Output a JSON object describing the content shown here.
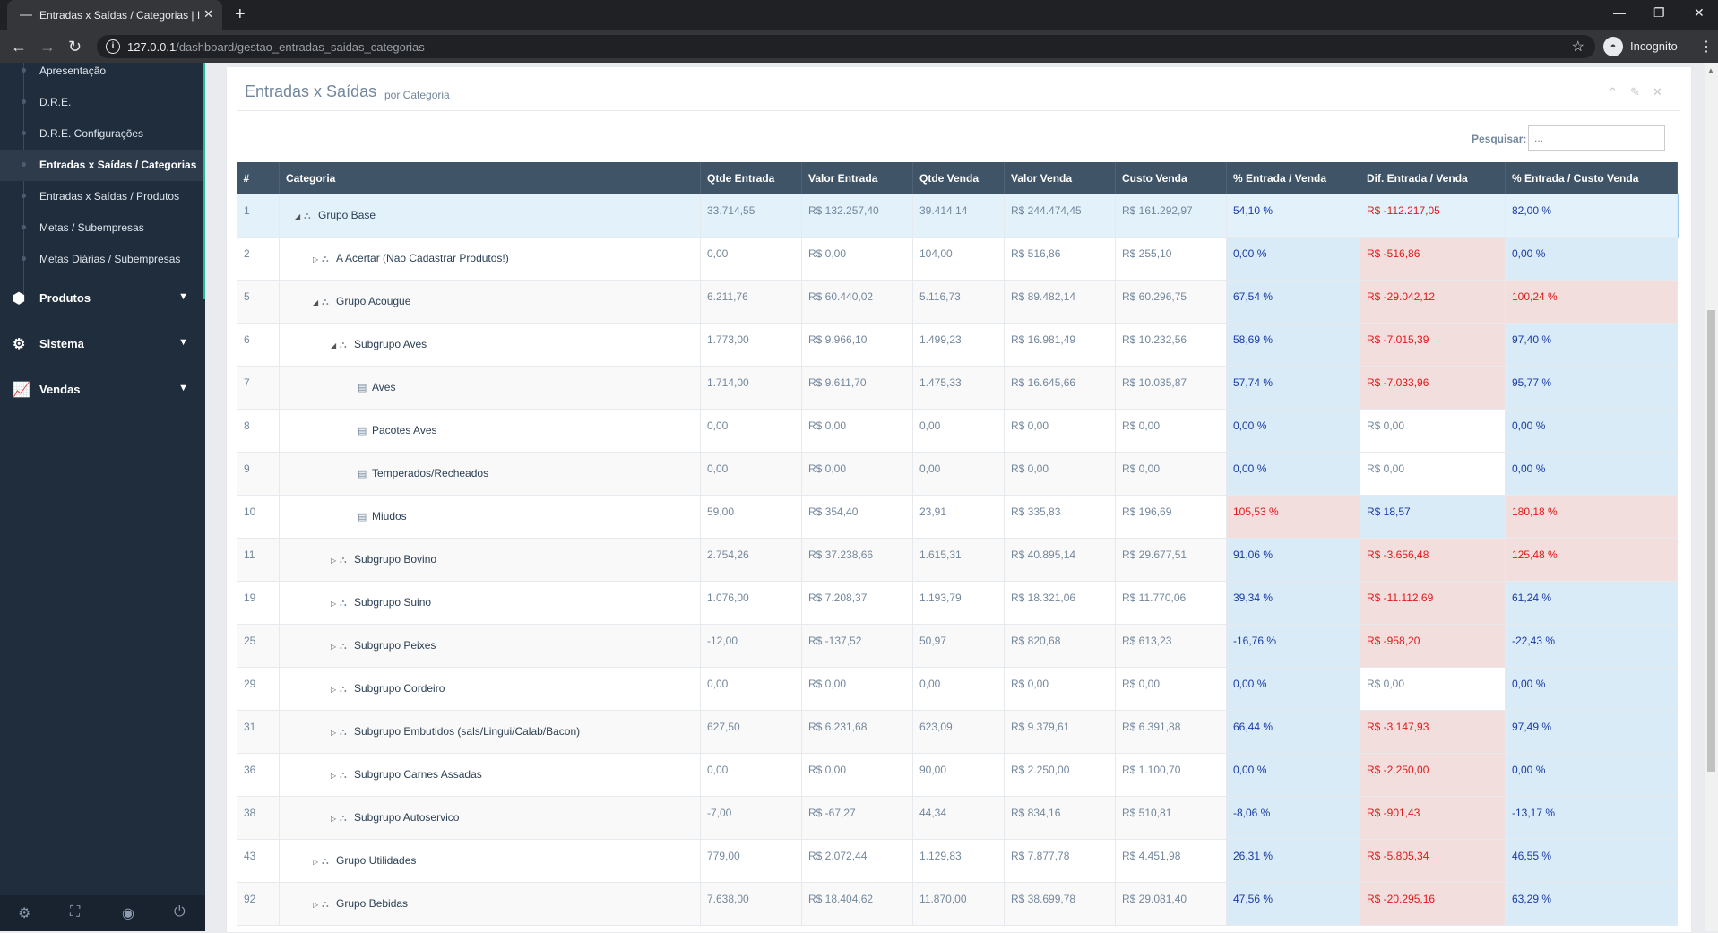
{
  "browser": {
    "tab_title": "Entradas x Saídas / Categorias | I",
    "url_host": "127.0.0.1",
    "url_path": "/dashboard/gestao_entradas_saidas_categorias",
    "profile_label": "Incognito"
  },
  "sidebar": {
    "sub_items": [
      {
        "label": "Apresentação",
        "active": false
      },
      {
        "label": "D.R.E.",
        "active": false
      },
      {
        "label": "D.R.E. Configurações",
        "active": false
      },
      {
        "label": "Entradas x Saídas / Categorias",
        "active": true
      },
      {
        "label": "Entradas x Saídas / Produtos",
        "active": false
      },
      {
        "label": "Metas / Subempresas",
        "active": false
      },
      {
        "label": "Metas Diárias / Subempresas",
        "active": false
      }
    ],
    "menu": [
      {
        "label": "Produtos",
        "icon": "cube-icon"
      },
      {
        "label": "Sistema",
        "icon": "gears-icon"
      },
      {
        "label": "Vendas",
        "icon": "line-chart-icon"
      }
    ]
  },
  "panel": {
    "title": "Entradas x Saídas",
    "subtitle": "por Categoria",
    "search_label": "Pesquisar:",
    "search_placeholder": "..."
  },
  "table": {
    "columns": [
      "#",
      "Categoria",
      "Qtde Entrada",
      "Valor Entrada",
      "Qtde Venda",
      "Valor Venda",
      "Custo Venda",
      "% Entrada / Venda",
      "Dif. Entrada / Venda",
      "% Entrada / Custo Venda"
    ],
    "rows": [
      {
        "id": "1",
        "level": 0,
        "toggle": "expanded",
        "icon": "sitemap",
        "categoria": "Grupo Base",
        "qtde_entrada": "33.714,55",
        "valor_entrada": "R$ 132.257,40",
        "qtde_venda": "39.414,14",
        "valor_venda": "R$ 244.474,45",
        "custo_venda": "R$ 161.292,97",
        "pct_entrada_venda": "54,10 %",
        "pct_entrada_venda_status": "pos",
        "dif_entrada_venda": "R$ -112.217,05",
        "dif_status": "neg",
        "pct_entrada_custo": "82,00 %",
        "pct_custo_status": "pos",
        "selected": true
      },
      {
        "id": "2",
        "level": 1,
        "toggle": "collapsed",
        "icon": "sitemap",
        "categoria": "A Acertar (Nao Cadastrar Produtos!)",
        "qtde_entrada": "0,00",
        "valor_entrada": "R$ 0,00",
        "qtde_venda": "104,00",
        "valor_venda": "R$ 516,86",
        "custo_venda": "R$ 255,10",
        "pct_entrada_venda": "0,00 %",
        "pct_entrada_venda_status": "pos",
        "dif_entrada_venda": "R$ -516,86",
        "dif_status": "neg",
        "pct_entrada_custo": "0,00 %",
        "pct_custo_status": "pos"
      },
      {
        "id": "5",
        "level": 1,
        "toggle": "expanded",
        "icon": "sitemap",
        "categoria": "Grupo Acougue",
        "qtde_entrada": "6.211,76",
        "valor_entrada": "R$ 60.440,02",
        "qtde_venda": "5.116,73",
        "valor_venda": "R$ 89.482,14",
        "custo_venda": "R$ 60.296,75",
        "pct_entrada_venda": "67,54 %",
        "pct_entrada_venda_status": "pos",
        "dif_entrada_venda": "R$ -29.042,12",
        "dif_status": "neg",
        "pct_entrada_custo": "100,24 %",
        "pct_custo_status": "neg"
      },
      {
        "id": "6",
        "level": 2,
        "toggle": "expanded",
        "icon": "sitemap",
        "categoria": "Subgrupo Aves",
        "qtde_entrada": "1.773,00",
        "valor_entrada": "R$ 9.966,10",
        "qtde_venda": "1.499,23",
        "valor_venda": "R$ 16.981,49",
        "custo_venda": "R$ 10.232,56",
        "pct_entrada_venda": "58,69 %",
        "pct_entrada_venda_status": "pos",
        "dif_entrada_venda": "R$ -7.015,39",
        "dif_status": "neg",
        "pct_entrada_custo": "97,40 %",
        "pct_custo_status": "pos"
      },
      {
        "id": "7",
        "level": 3,
        "toggle": "none",
        "icon": "book",
        "categoria": "Aves",
        "qtde_entrada": "1.714,00",
        "valor_entrada": "R$ 9.611,70",
        "qtde_venda": "1.475,33",
        "valor_venda": "R$ 16.645,66",
        "custo_venda": "R$ 10.035,87",
        "pct_entrada_venda": "57,74 %",
        "pct_entrada_venda_status": "pos",
        "dif_entrada_venda": "R$ -7.033,96",
        "dif_status": "neg",
        "pct_entrada_custo": "95,77 %",
        "pct_custo_status": "pos"
      },
      {
        "id": "8",
        "level": 3,
        "toggle": "none",
        "icon": "book",
        "categoria": "Pacotes Aves",
        "qtde_entrada": "0,00",
        "valor_entrada": "R$ 0,00",
        "qtde_venda": "0,00",
        "valor_venda": "R$ 0,00",
        "custo_venda": "R$ 0,00",
        "pct_entrada_venda": "0,00 %",
        "pct_entrada_venda_status": "pos",
        "dif_entrada_venda": "R$ 0,00",
        "dif_status": "zero",
        "pct_entrada_custo": "0,00 %",
        "pct_custo_status": "pos"
      },
      {
        "id": "9",
        "level": 3,
        "toggle": "none",
        "icon": "book",
        "categoria": "Temperados/Recheados",
        "qtde_entrada": "0,00",
        "valor_entrada": "R$ 0,00",
        "qtde_venda": "0,00",
        "valor_venda": "R$ 0,00",
        "custo_venda": "R$ 0,00",
        "pct_entrada_venda": "0,00 %",
        "pct_entrada_venda_status": "pos",
        "dif_entrada_venda": "R$ 0,00",
        "dif_status": "zero",
        "pct_entrada_custo": "0,00 %",
        "pct_custo_status": "pos"
      },
      {
        "id": "10",
        "level": 3,
        "toggle": "none",
        "icon": "book",
        "categoria": "Miudos",
        "qtde_entrada": "59,00",
        "valor_entrada": "R$ 354,40",
        "qtde_venda": "23,91",
        "valor_venda": "R$ 335,83",
        "custo_venda": "R$ 196,69",
        "pct_entrada_venda": "105,53 %",
        "pct_entrada_venda_status": "neg",
        "dif_entrada_venda": "R$ 18,57",
        "dif_status": "pos",
        "pct_entrada_custo": "180,18 %",
        "pct_custo_status": "neg"
      },
      {
        "id": "11",
        "level": 2,
        "toggle": "collapsed",
        "icon": "sitemap",
        "categoria": "Subgrupo Bovino",
        "qtde_entrada": "2.754,26",
        "valor_entrada": "R$ 37.238,66",
        "qtde_venda": "1.615,31",
        "valor_venda": "R$ 40.895,14",
        "custo_venda": "R$ 29.677,51",
        "pct_entrada_venda": "91,06 %",
        "pct_entrada_venda_status": "pos",
        "dif_entrada_venda": "R$ -3.656,48",
        "dif_status": "neg",
        "pct_entrada_custo": "125,48 %",
        "pct_custo_status": "neg"
      },
      {
        "id": "19",
        "level": 2,
        "toggle": "collapsed",
        "icon": "sitemap",
        "categoria": "Subgrupo Suino",
        "qtde_entrada": "1.076,00",
        "valor_entrada": "R$ 7.208,37",
        "qtde_venda": "1.193,79",
        "valor_venda": "R$ 18.321,06",
        "custo_venda": "R$ 11.770,06",
        "pct_entrada_venda": "39,34 %",
        "pct_entrada_venda_status": "pos",
        "dif_entrada_venda": "R$ -11.112,69",
        "dif_status": "neg",
        "pct_entrada_custo": "61,24 %",
        "pct_custo_status": "pos"
      },
      {
        "id": "25",
        "level": 2,
        "toggle": "collapsed",
        "icon": "sitemap",
        "categoria": "Subgrupo Peixes",
        "qtde_entrada": "-12,00",
        "valor_entrada": "R$ -137,52",
        "qtde_venda": "50,97",
        "valor_venda": "R$ 820,68",
        "custo_venda": "R$ 613,23",
        "pct_entrada_venda": "-16,76 %",
        "pct_entrada_venda_status": "pos",
        "dif_entrada_venda": "R$ -958,20",
        "dif_status": "neg",
        "pct_entrada_custo": "-22,43 %",
        "pct_custo_status": "pos"
      },
      {
        "id": "29",
        "level": 2,
        "toggle": "collapsed",
        "icon": "sitemap",
        "categoria": "Subgrupo Cordeiro",
        "qtde_entrada": "0,00",
        "valor_entrada": "R$ 0,00",
        "qtde_venda": "0,00",
        "valor_venda": "R$ 0,00",
        "custo_venda": "R$ 0,00",
        "pct_entrada_venda": "0,00 %",
        "pct_entrada_venda_status": "pos",
        "dif_entrada_venda": "R$ 0,00",
        "dif_status": "zero",
        "pct_entrada_custo": "0,00 %",
        "pct_custo_status": "pos"
      },
      {
        "id": "31",
        "level": 2,
        "toggle": "collapsed",
        "icon": "sitemap",
        "categoria": "Subgrupo Embutidos (sals/Lingui/Calab/Bacon)",
        "qtde_entrada": "627,50",
        "valor_entrada": "R$ 6.231,68",
        "qtde_venda": "623,09",
        "valor_venda": "R$ 9.379,61",
        "custo_venda": "R$ 6.391,88",
        "pct_entrada_venda": "66,44 %",
        "pct_entrada_venda_status": "pos",
        "dif_entrada_venda": "R$ -3.147,93",
        "dif_status": "neg",
        "pct_entrada_custo": "97,49 %",
        "pct_custo_status": "pos"
      },
      {
        "id": "36",
        "level": 2,
        "toggle": "collapsed",
        "icon": "sitemap",
        "categoria": "Subgrupo Carnes Assadas",
        "qtde_entrada": "0,00",
        "valor_entrada": "R$ 0,00",
        "qtde_venda": "90,00",
        "valor_venda": "R$ 2.250,00",
        "custo_venda": "R$ 1.100,70",
        "pct_entrada_venda": "0,00 %",
        "pct_entrada_venda_status": "pos",
        "dif_entrada_venda": "R$ -2.250,00",
        "dif_status": "neg",
        "pct_entrada_custo": "0,00 %",
        "pct_custo_status": "pos"
      },
      {
        "id": "38",
        "level": 2,
        "toggle": "collapsed",
        "icon": "sitemap",
        "categoria": "Subgrupo Autoservico",
        "qtde_entrada": "-7,00",
        "valor_entrada": "R$ -67,27",
        "qtde_venda": "44,34",
        "valor_venda": "R$ 834,16",
        "custo_venda": "R$ 510,81",
        "pct_entrada_venda": "-8,06 %",
        "pct_entrada_venda_status": "pos",
        "dif_entrada_venda": "R$ -901,43",
        "dif_status": "neg",
        "pct_entrada_custo": "-13,17 %",
        "pct_custo_status": "pos"
      },
      {
        "id": "43",
        "level": 1,
        "toggle": "collapsed",
        "icon": "sitemap",
        "categoria": "Grupo Utilidades",
        "qtde_entrada": "779,00",
        "valor_entrada": "R$ 2.072,44",
        "qtde_venda": "1.129,83",
        "valor_venda": "R$ 7.877,78",
        "custo_venda": "R$ 4.451,98",
        "pct_entrada_venda": "26,31 %",
        "pct_entrada_venda_status": "pos",
        "dif_entrada_venda": "R$ -5.805,34",
        "dif_status": "neg",
        "pct_entrada_custo": "46,55 %",
        "pct_custo_status": "pos"
      },
      {
        "id": "92",
        "level": 1,
        "toggle": "collapsed",
        "icon": "sitemap",
        "categoria": "Grupo Bebidas",
        "qtde_entrada": "7.638,00",
        "valor_entrada": "R$ 18.404,62",
        "qtde_venda": "11.870,00",
        "valor_venda": "R$ 38.699,78",
        "custo_venda": "R$ 29.081,40",
        "pct_entrada_venda": "47,56 %",
        "pct_entrada_venda_status": "pos",
        "dif_entrada_venda": "R$ -20.295,16",
        "dif_status": "neg",
        "pct_entrada_custo": "63,29 %",
        "pct_custo_status": "pos"
      }
    ]
  }
}
